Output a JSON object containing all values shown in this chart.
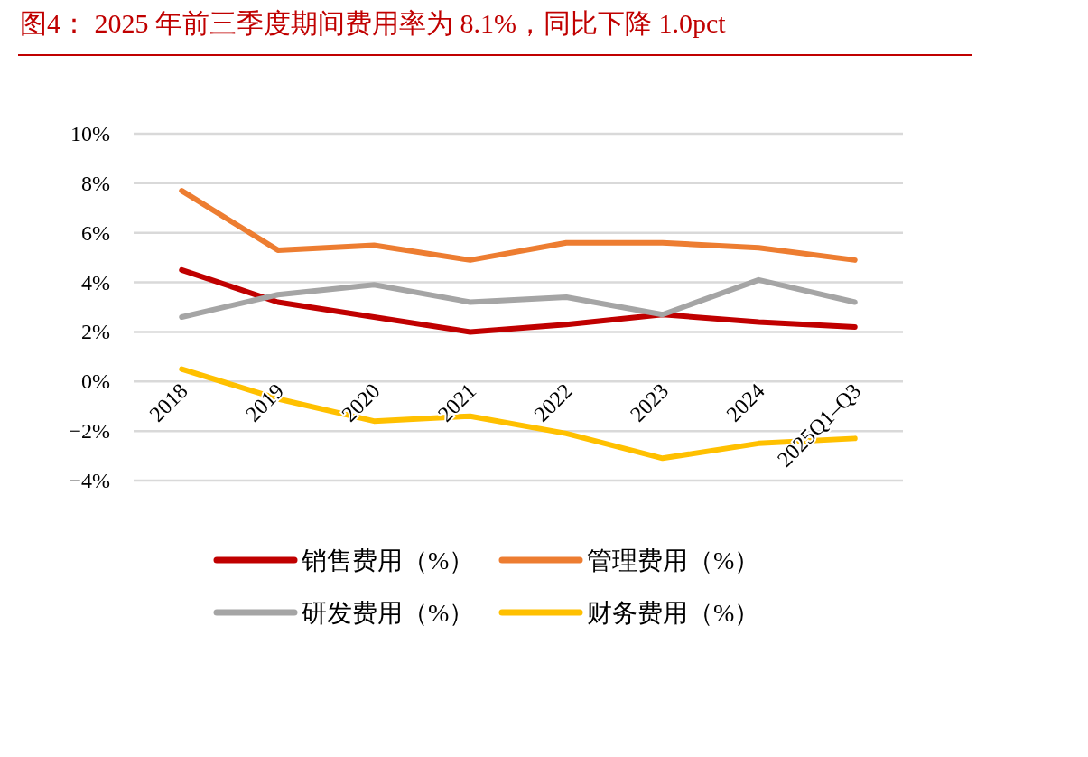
{
  "chart_data": {
    "type": "line",
    "title": "图4：  2025 年前三季度期间费用率为 8.1%，同比下降 1.0pct",
    "categories": [
      "2018",
      "2019",
      "2020",
      "2021",
      "2022",
      "2023",
      "2024",
      "2025Q1–Q3"
    ],
    "series": [
      {
        "name": "销售费用（%）",
        "color": "#c00000",
        "values": [
          4.5,
          3.2,
          2.6,
          2.0,
          2.3,
          2.7,
          2.4,
          2.2
        ]
      },
      {
        "name": "管理费用（%）",
        "color": "#ed7d31",
        "values": [
          7.7,
          5.3,
          5.5,
          4.9,
          5.6,
          5.6,
          5.4,
          4.9
        ]
      },
      {
        "name": "研发费用（%）",
        "color": "#a5a5a5",
        "values": [
          2.6,
          3.5,
          3.9,
          3.2,
          3.4,
          2.7,
          4.1,
          3.2
        ]
      },
      {
        "name": "财务费用（%）",
        "color": "#ffc000",
        "values": [
          0.5,
          -0.7,
          -1.6,
          -1.4,
          -2.1,
          -3.1,
          -2.5,
          -2.3
        ]
      }
    ],
    "ylim": [
      -4,
      10
    ],
    "yticks": [
      {
        "value": -4,
        "label": "−4%"
      },
      {
        "value": -2,
        "label": "−2%"
      },
      {
        "value": 0,
        "label": "0%"
      },
      {
        "value": 2,
        "label": "2%"
      },
      {
        "value": 4,
        "label": "4%"
      },
      {
        "value": 6,
        "label": "6%"
      },
      {
        "value": 8,
        "label": "8%"
      },
      {
        "value": 10,
        "label": "10%"
      }
    ],
    "grid": "y",
    "legend": "bottom"
  }
}
